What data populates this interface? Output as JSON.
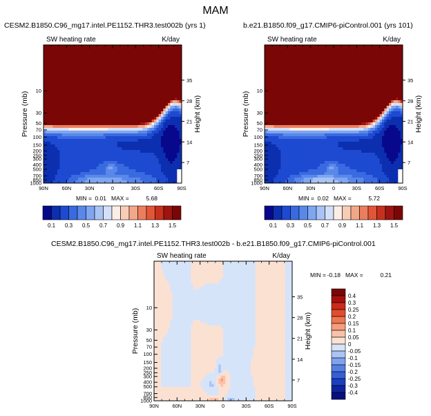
{
  "title": "MAM",
  "chart_data": [
    {
      "type": "heatmap",
      "title": "CESM2.B1850.C96_mg17.intel.PE1152.THR3.test002b (yrs 1)",
      "left_label": "SW heating rate",
      "right_label": "K/day",
      "ylabel": "Pressure (mb)",
      "ylabel_right": "Height (km)",
      "x_ticks": [
        "90N",
        "60N",
        "30N",
        "0",
        "30S",
        "60S",
        "90S"
      ],
      "y_ticks": [
        "10",
        "30",
        "50",
        "70",
        "100",
        "150",
        "200",
        "250",
        "300",
        "400",
        "500",
        "700",
        "850",
        "1000"
      ],
      "height_ticks": [
        "35",
        "28",
        "21",
        "14",
        "7"
      ],
      "min_label": "MIN =",
      "min": "0.01",
      "max_label": "MAX =",
      "max": "5.68",
      "colorbar_labels": [
        "0.1",
        "0.3",
        "0.5",
        "0.7",
        "0.9",
        "1.1",
        "1.3",
        "1.5"
      ]
    },
    {
      "type": "heatmap",
      "title": "b.e21.B1850.f09_g17.CMIP6-piControl.001 (yrs 101)",
      "left_label": "SW heating rate",
      "right_label": "K/day",
      "ylabel": "Pressure (mb)",
      "ylabel_right": "Height (km)",
      "x_ticks": [
        "90N",
        "60N",
        "30N",
        "0",
        "30S",
        "60S",
        "90S"
      ],
      "y_ticks": [
        "10",
        "30",
        "50",
        "70",
        "100",
        "150",
        "200",
        "250",
        "300",
        "400",
        "500",
        "700",
        "850",
        "1000"
      ],
      "height_ticks": [
        "35",
        "28",
        "21",
        "14",
        "7"
      ],
      "min_label": "MIN =",
      "min": "0.02",
      "max_label": "MAX =",
      "max": "5.72",
      "colorbar_labels": [
        "0.1",
        "0.3",
        "0.5",
        "0.7",
        "0.9",
        "1.1",
        "1.3",
        "1.5"
      ]
    },
    {
      "type": "heatmap",
      "title": "CESM2.B1850.C96_mg17.intel.PE1152.THR3.test002b - b.e21.B1850.f09_g17.CMIP6-piControl.001",
      "left_label": "SW heating rate",
      "right_label": "K/day",
      "ylabel": "Pressure (mb)",
      "ylabel_right": "Height (km)",
      "x_ticks": [
        "90N",
        "60N",
        "30N",
        "0",
        "30S",
        "60S",
        "90S"
      ],
      "y_ticks": [
        "10",
        "30",
        "50",
        "70",
        "100",
        "150",
        "200",
        "250",
        "300",
        "400",
        "500",
        "700",
        "850",
        "1000"
      ],
      "height_ticks": [
        "35",
        "28",
        "21",
        "14",
        "7"
      ],
      "min_label": "MIN =",
      "min": "-0.18",
      "max_label": "MAX =",
      "max": "0.21",
      "colorbar_labels": [
        "0.4",
        "0.3",
        "0.25",
        "0.2",
        "0.15",
        "0.1",
        "0.05",
        "0",
        "-0.05",
        "-0.1",
        "-0.15",
        "-0.2",
        "-0.25",
        "-0.3",
        "-0.4"
      ]
    }
  ],
  "colors": {
    "abs_scale": [
      "#08088c",
      "#0c2fb0",
      "#1d4ad0",
      "#3a6ae0",
      "#5a88ea",
      "#7fa6f0",
      "#a9c3f5",
      "#d3e0f8",
      "#faeee6",
      "#f8cdb6",
      "#f3a789",
      "#ec7e5e",
      "#e25636",
      "#c8301e",
      "#9e1410",
      "#7a0606"
    ],
    "diff_scale": [
      "#7a0606",
      "#a80f0c",
      "#cc2a1a",
      "#e24d2e",
      "#ef7651",
      "#f59d7c",
      "#f9c2a8",
      "#fbe1d2",
      "#d6e4fa",
      "#abc4f4",
      "#7fa2ee",
      "#567fe4",
      "#345fd6",
      "#1c3fbf",
      "#0e23a0",
      "#08107c"
    ]
  }
}
